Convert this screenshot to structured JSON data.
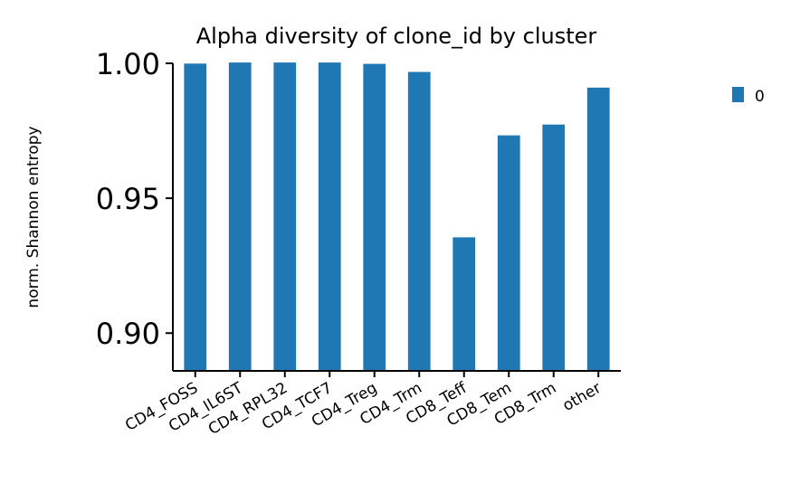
{
  "chart_data": {
    "type": "bar",
    "title": "Alpha diversity of clone_id by cluster",
    "xlabel": "",
    "ylabel": "norm. Shannon entropy",
    "categories": [
      "CD4_FOSS",
      "CD4_IL6ST",
      "CD4_RPL32",
      "CD4_TCF7",
      "CD4_Treg",
      "CD4_Trm",
      "CD8_Teff",
      "CD8_Tem",
      "CD8_Trm",
      "other"
    ],
    "series": [
      {
        "name": "0",
        "values": [
          0.9999,
          1.0003,
          1.0003,
          1.0003,
          0.9998,
          0.9968,
          0.9355,
          0.9733,
          0.9773,
          0.991
        ]
      }
    ],
    "ylim": [
      0.886,
      1.0
    ],
    "yticks": [
      0.9,
      0.95,
      1.0
    ],
    "ytick_labels": [
      "0.90",
      "0.95",
      "1.00"
    ],
    "color": "#1f77b4",
    "grid": false,
    "legend_position": "right"
  }
}
